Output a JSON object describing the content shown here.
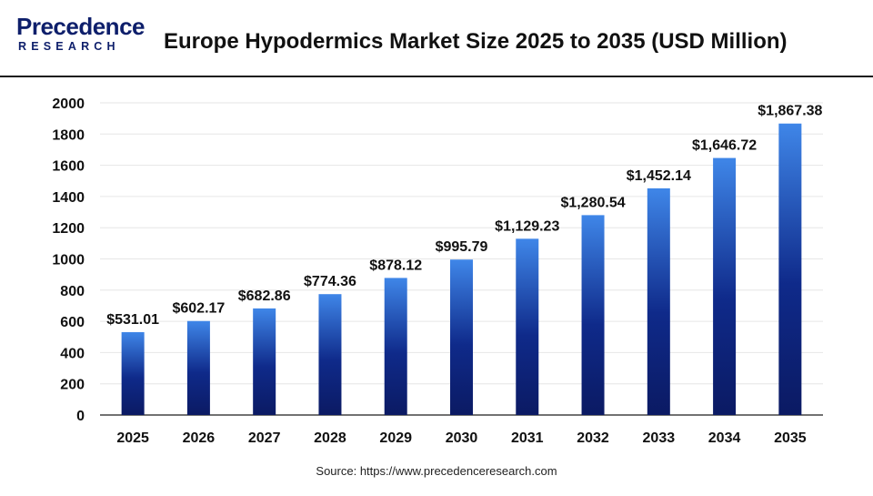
{
  "header": {
    "logo_word": "Precedence",
    "logo_sub": "RESEARCH",
    "title": "Europe Hypodermics Market Size 2025 to 2035 (USD Million)"
  },
  "source": "Source: https://www.precedenceresearch.com",
  "colors": {
    "bar_top": "#3f86e8",
    "bar_mid": "#0f2a8a",
    "bar_bottom": "#0b1a63",
    "logo": "#0e1f6b"
  },
  "chart_data": {
    "type": "bar",
    "title": "Europe Hypodermics Market Size 2025 to 2035 (USD Million)",
    "xlabel": "",
    "ylabel": "",
    "categories": [
      "2025",
      "2026",
      "2027",
      "2028",
      "2029",
      "2030",
      "2031",
      "2032",
      "2033",
      "2034",
      "2035"
    ],
    "values": [
      531.01,
      602.17,
      682.86,
      774.36,
      878.12,
      995.79,
      1129.23,
      1280.54,
      1452.14,
      1646.72,
      1867.38
    ],
    "data_labels": [
      "$531.01",
      "$602.17",
      "$682.86",
      "$774.36",
      "$878.12",
      "$995.79",
      "$1,129.23",
      "$1,280.54",
      "$1,452.14",
      "$1,646.72",
      "$1,867.38"
    ],
    "ylim": [
      0,
      2000
    ],
    "yticks": [
      0,
      200,
      400,
      600,
      800,
      1000,
      1200,
      1400,
      1600,
      1800,
      2000
    ],
    "grid": true
  }
}
